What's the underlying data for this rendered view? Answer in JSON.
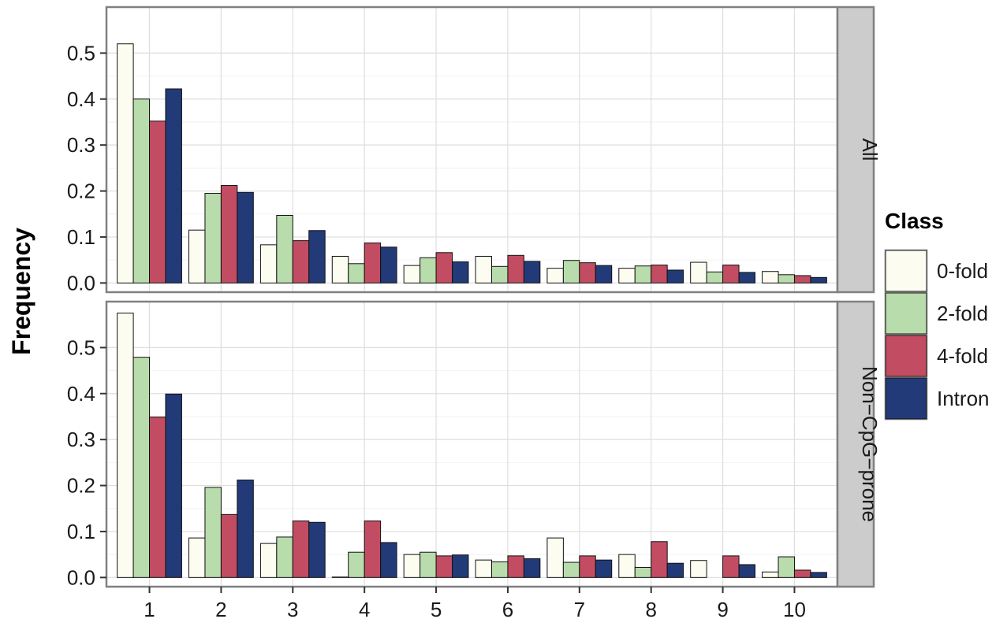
{
  "chart_data": {
    "type": "bar",
    "ylabel": "Frequency",
    "xlabel": "",
    "categories": [
      "1",
      "2",
      "3",
      "4",
      "5",
      "6",
      "7",
      "8",
      "9",
      "10"
    ],
    "y_ticks": [
      "0.0",
      "0.1",
      "0.2",
      "0.3",
      "0.4",
      "0.5"
    ],
    "ylim": [
      -0.02,
      0.6
    ],
    "grid": true,
    "legend": {
      "title": "Class",
      "position": "right",
      "entries": [
        "0-fold",
        "2-fold",
        "4-fold",
        "Intron"
      ]
    },
    "colors": {
      "0-fold": "#fcfdf0",
      "2-fold": "#b8dcab",
      "4-fold": "#c24d63",
      "Intron": "#233a78"
    },
    "panels": [
      {
        "strip": "All",
        "series": [
          {
            "name": "0-fold",
            "values": [
              0.52,
              0.115,
              0.083,
              0.058,
              0.038,
              0.058,
              0.032,
              0.032,
              0.045,
              0.025
            ]
          },
          {
            "name": "2-fold",
            "values": [
              0.4,
              0.195,
              0.147,
              0.042,
              0.055,
              0.036,
              0.049,
              0.037,
              0.024,
              0.018
            ]
          },
          {
            "name": "4-fold",
            "values": [
              0.352,
              0.212,
              0.092,
              0.087,
              0.066,
              0.06,
              0.044,
              0.039,
              0.039,
              0.016
            ]
          },
          {
            "name": "Intron",
            "values": [
              0.422,
              0.197,
              0.114,
              0.078,
              0.046,
              0.047,
              0.038,
              0.028,
              0.023,
              0.012
            ]
          }
        ]
      },
      {
        "strip": "Non−CpG−prone",
        "series": [
          {
            "name": "0-fold",
            "values": [
              0.575,
              0.086,
              0.074,
              0.001,
              0.05,
              0.038,
              0.086,
              0.05,
              0.037,
              0.012
            ]
          },
          {
            "name": "2-fold",
            "values": [
              0.479,
              0.196,
              0.088,
              0.055,
              0.055,
              0.034,
              0.033,
              0.022,
              0.0,
              0.045
            ]
          },
          {
            "name": "4-fold",
            "values": [
              0.349,
              0.137,
              0.123,
              0.123,
              0.047,
              0.047,
              0.047,
              0.078,
              0.047,
              0.016
            ]
          },
          {
            "name": "Intron",
            "values": [
              0.399,
              0.212,
              0.12,
              0.076,
              0.049,
              0.041,
              0.038,
              0.031,
              0.028,
              0.011
            ]
          }
        ]
      }
    ]
  }
}
